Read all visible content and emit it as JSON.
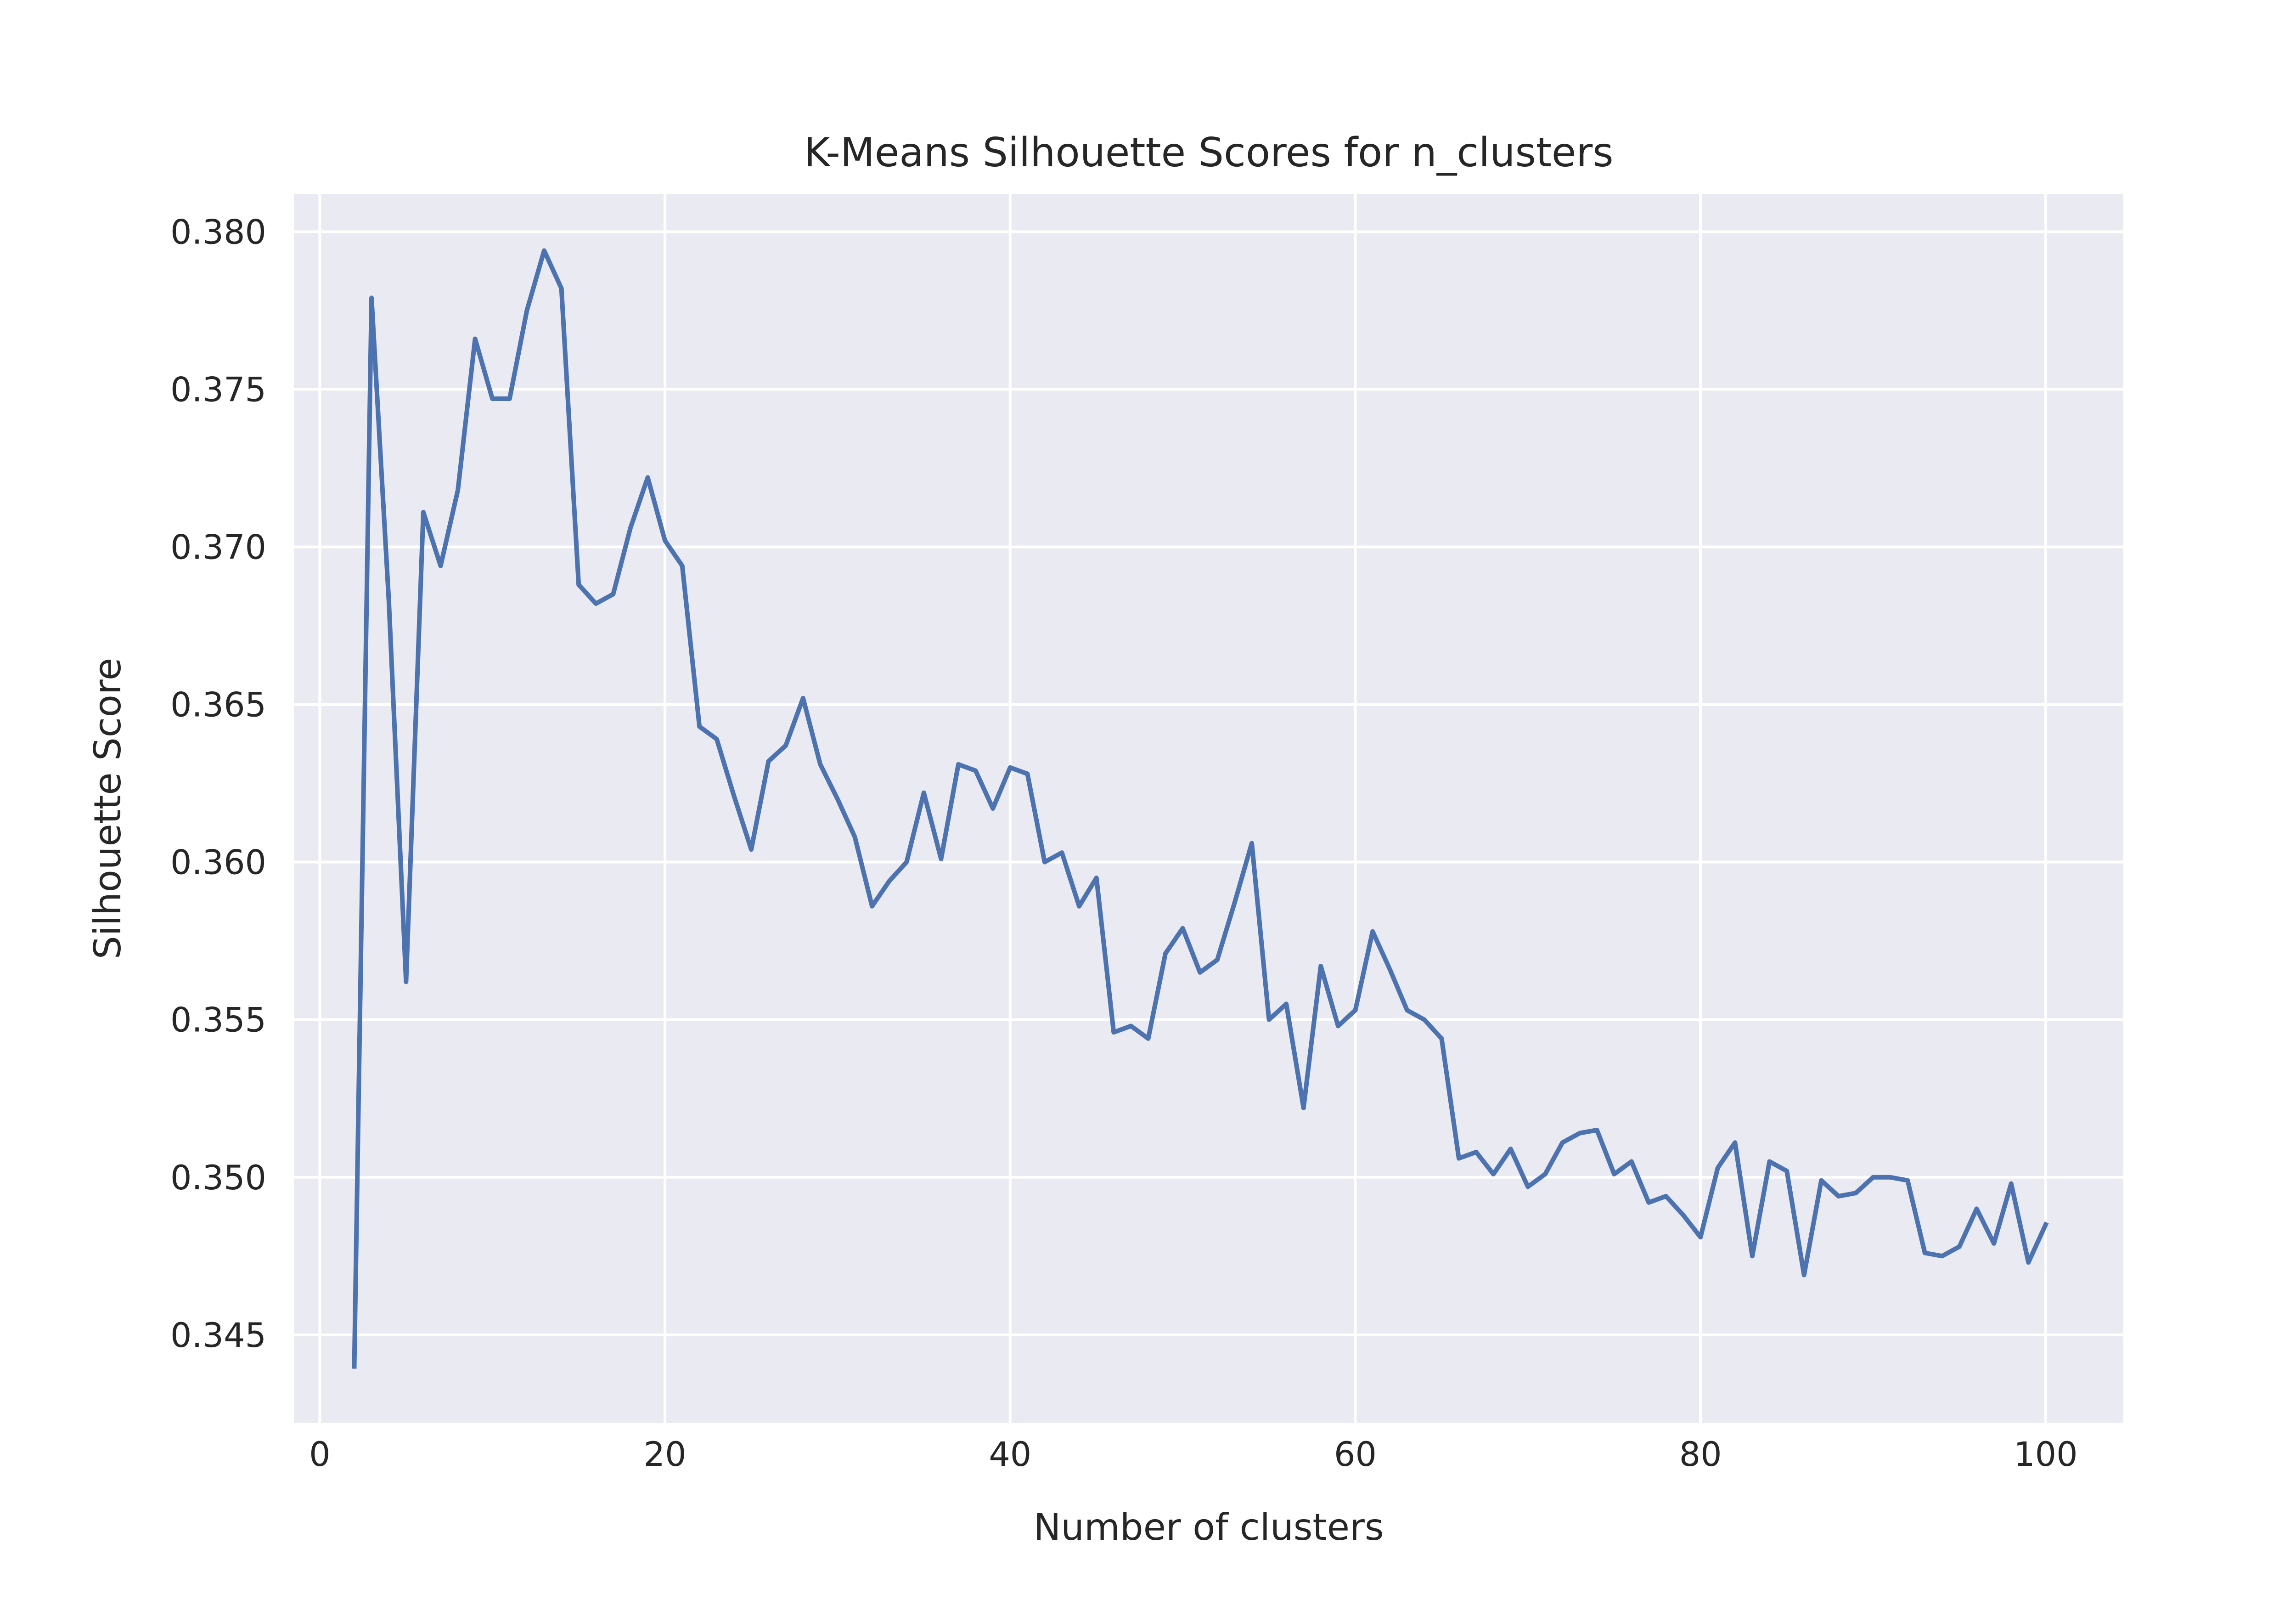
{
  "chart_data": {
    "type": "line",
    "title": "K-Means Silhouette Scores for n_clusters",
    "xlabel": "Number of clusters",
    "ylabel": "Silhouette Score",
    "xlim": [
      -1.5,
      104.5
    ],
    "ylim": [
      0.3422,
      0.3812
    ],
    "x_ticks": [
      0,
      20,
      40,
      60,
      80,
      100
    ],
    "x_tick_labels": [
      "0",
      "20",
      "40",
      "60",
      "80",
      "100"
    ],
    "y_ticks": [
      0.345,
      0.35,
      0.355,
      0.36,
      0.365,
      0.37,
      0.375,
      0.38
    ],
    "y_tick_labels": [
      "0.345",
      "0.350",
      "0.355",
      "0.360",
      "0.365",
      "0.370",
      "0.375",
      "0.380"
    ],
    "grid": true,
    "legend": "none",
    "colors": {
      "background": "#eaeaf2",
      "grid": "#ffffff",
      "line": "#4c72b0",
      "text": "#262626"
    },
    "series": [
      {
        "x": [
          2,
          3,
          4,
          5,
          6,
          7,
          8,
          9,
          10,
          11,
          12,
          13,
          14,
          15,
          16,
          17,
          18,
          19,
          20,
          21,
          22,
          23,
          24,
          25,
          26,
          27,
          28,
          29,
          30,
          31,
          32,
          33,
          34,
          35,
          36,
          37,
          38,
          39,
          40,
          41,
          42,
          43,
          44,
          45,
          46,
          47,
          48,
          49,
          50,
          51,
          52,
          53,
          54,
          55,
          56,
          57,
          58,
          59,
          60,
          61,
          62,
          63,
          64,
          65,
          66,
          67,
          68,
          69,
          70,
          71,
          72,
          73,
          74,
          75,
          76,
          77,
          78,
          79,
          80,
          81,
          82,
          83,
          84,
          85,
          86,
          87,
          88,
          89,
          90,
          91,
          92,
          93,
          94,
          95,
          96,
          97,
          98,
          99,
          100
        ],
        "values": [
          0.344,
          0.3779,
          0.3683,
          0.3562,
          0.3711,
          0.3694,
          0.3718,
          0.3766,
          0.3747,
          0.3747,
          0.3775,
          0.3794,
          0.3782,
          0.3688,
          0.3682,
          0.3685,
          0.3706,
          0.3722,
          0.3702,
          0.3694,
          0.3643,
          0.3639,
          0.3621,
          0.3604,
          0.3632,
          0.3637,
          0.3652,
          0.3631,
          0.362,
          0.3608,
          0.3586,
          0.3594,
          0.36,
          0.3622,
          0.3601,
          0.3631,
          0.3629,
          0.3617,
          0.363,
          0.3628,
          0.36,
          0.3603,
          0.3586,
          0.3595,
          0.3546,
          0.3548,
          0.3544,
          0.3571,
          0.3579,
          0.3565,
          0.3569,
          0.3587,
          0.3606,
          0.355,
          0.3555,
          0.3522,
          0.3567,
          0.3548,
          0.3553,
          0.3578,
          0.3566,
          0.3553,
          0.355,
          0.3544,
          0.3506,
          0.3508,
          0.3501,
          0.3509,
          0.3497,
          0.3501,
          0.3511,
          0.3514,
          0.3515,
          0.3501,
          0.3505,
          0.3492,
          0.3494,
          0.3488,
          0.3481,
          0.3503,
          0.3511,
          0.3475,
          0.3505,
          0.3502,
          0.3469,
          0.3499,
          0.3494,
          0.3495,
          0.35,
          0.35,
          0.3499,
          0.3476,
          0.3475,
          0.3478,
          0.349,
          0.3479,
          0.3498,
          0.3473,
          0.3485
        ]
      }
    ]
  }
}
